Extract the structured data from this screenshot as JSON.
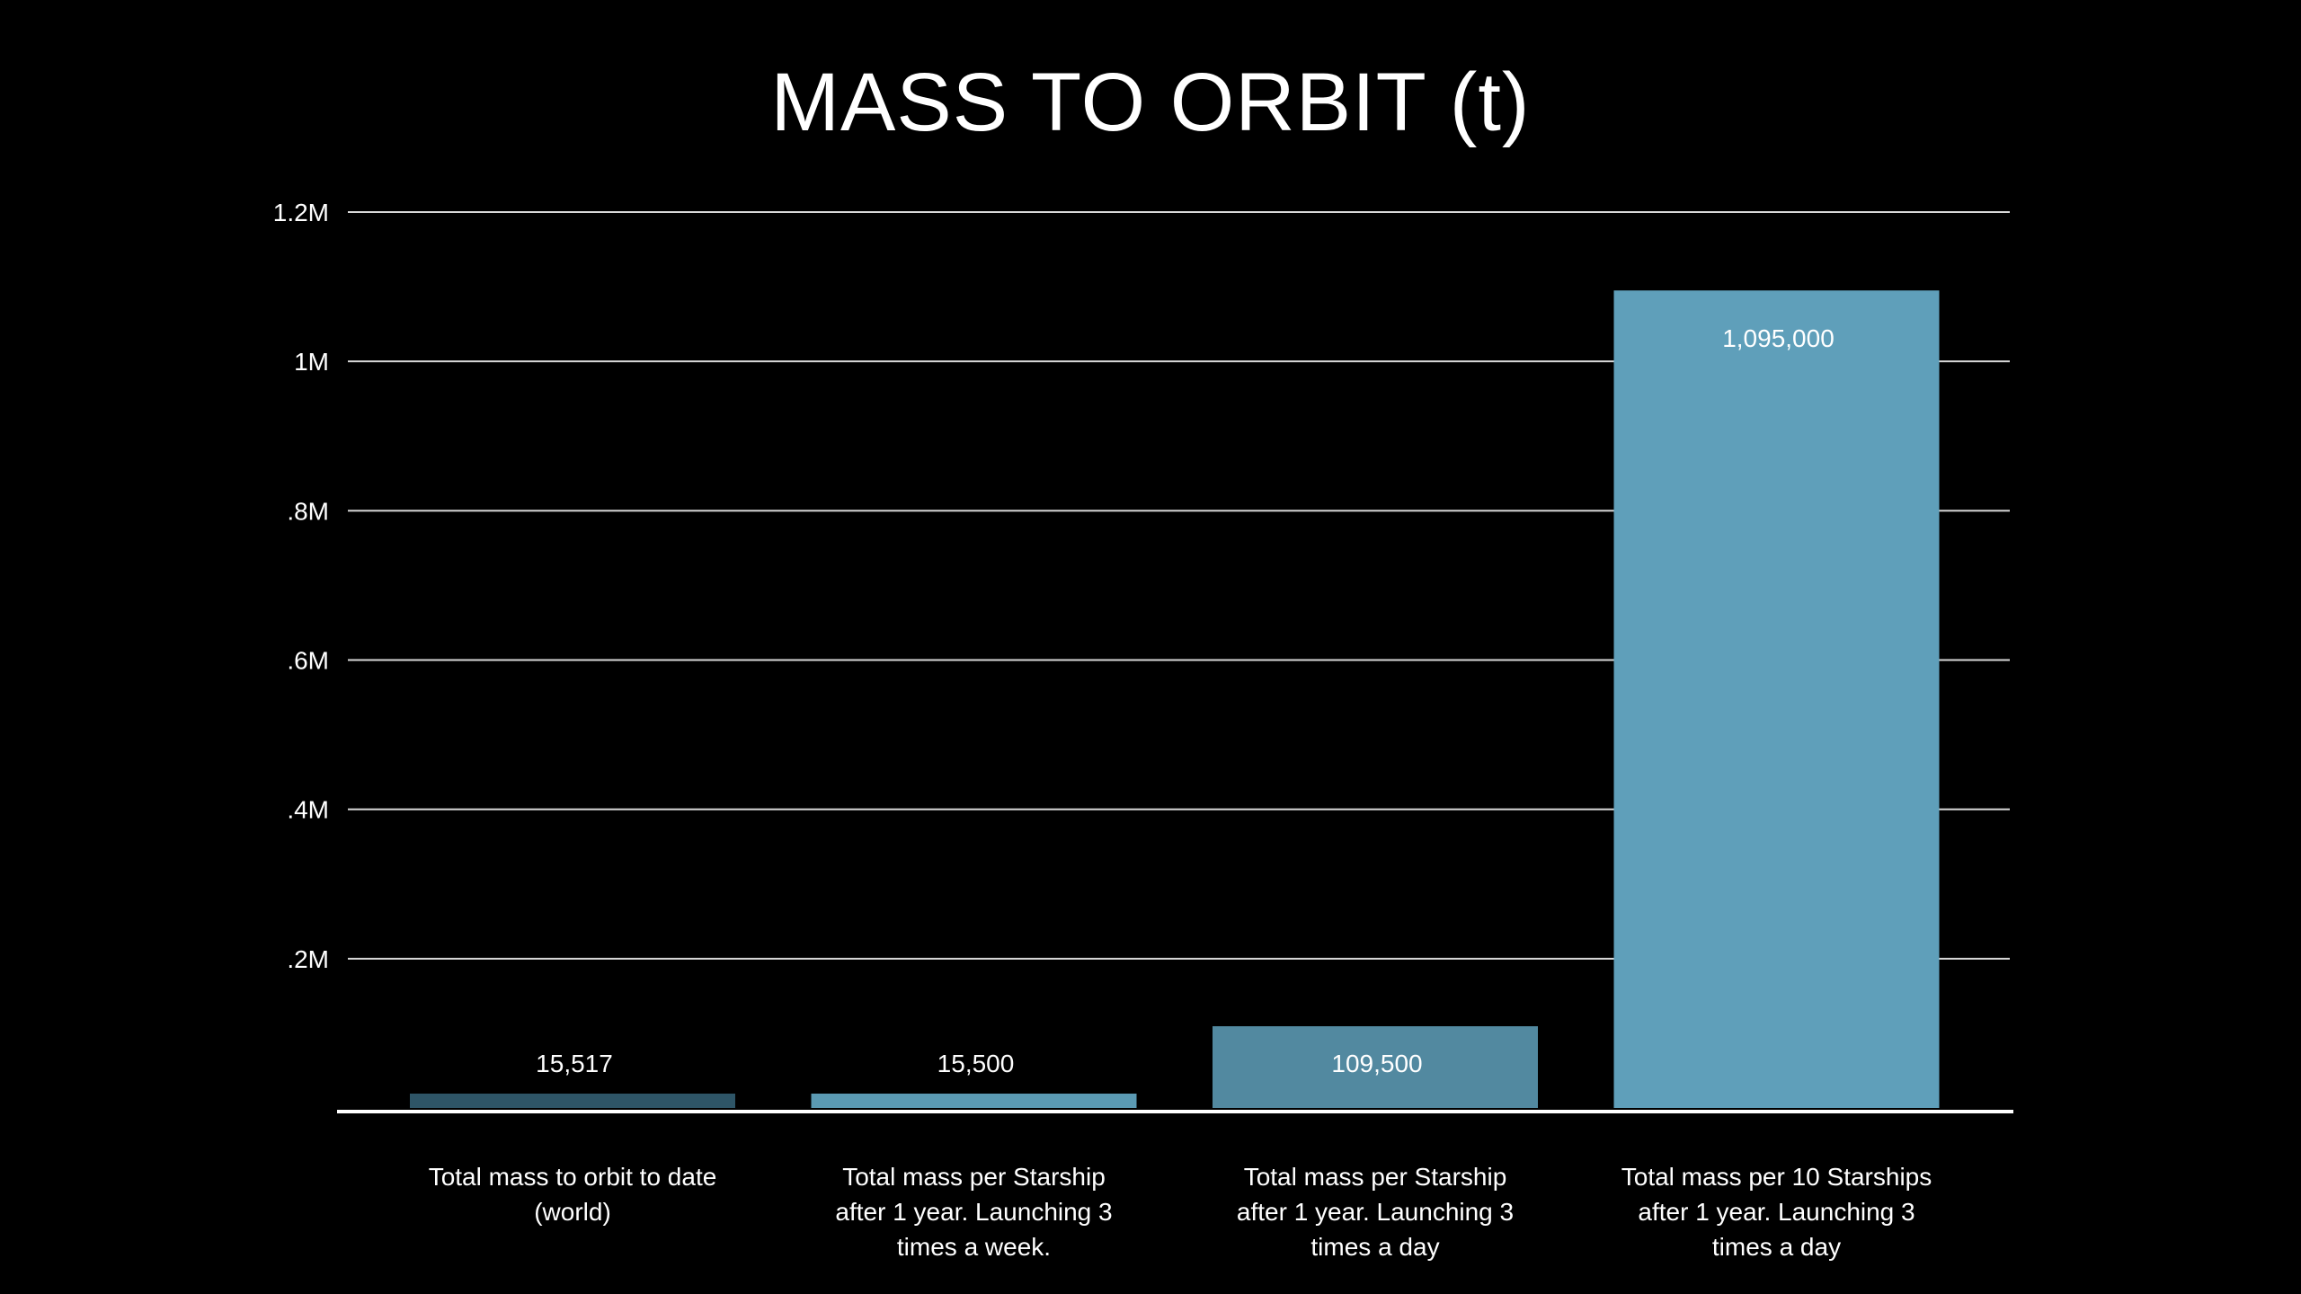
{
  "chart_data": {
    "type": "bar",
    "title": "MASS TO ORBIT (t)",
    "xlabel": "",
    "ylabel": "",
    "ylim": [
      0,
      1200000
    ],
    "yticks": [
      {
        "value": 200000,
        "label": ".2M"
      },
      {
        "value": 400000,
        "label": ".4M"
      },
      {
        "value": 600000,
        "label": ".6M"
      },
      {
        "value": 800000,
        "label": ".8M"
      },
      {
        "value": 1000000,
        "label": "1M"
      },
      {
        "value": 1200000,
        "label": "1.2M"
      }
    ],
    "grid": true,
    "legend": "none",
    "categories": [
      "Total mass to orbit to date\n(world)",
      "Total mass per Starship\nafter 1 year. Launching 3\ntimes a week.",
      "Total mass per Starship\nafter 1 year. Launching 3\ntimes a day",
      "Total mass per 10 Starships\nafter 1 year. Launching 3\ntimes a day"
    ],
    "values": [
      15517,
      15500,
      109500,
      1095000
    ],
    "value_labels": [
      "15,517",
      "15,500",
      "109,500",
      "1,095,000"
    ],
    "bar_colors": [
      "#2e5567",
      "#5b9ab3",
      "#5289a0",
      "#5f9fba"
    ],
    "background": "#000000",
    "text_color": "#ffffff"
  }
}
